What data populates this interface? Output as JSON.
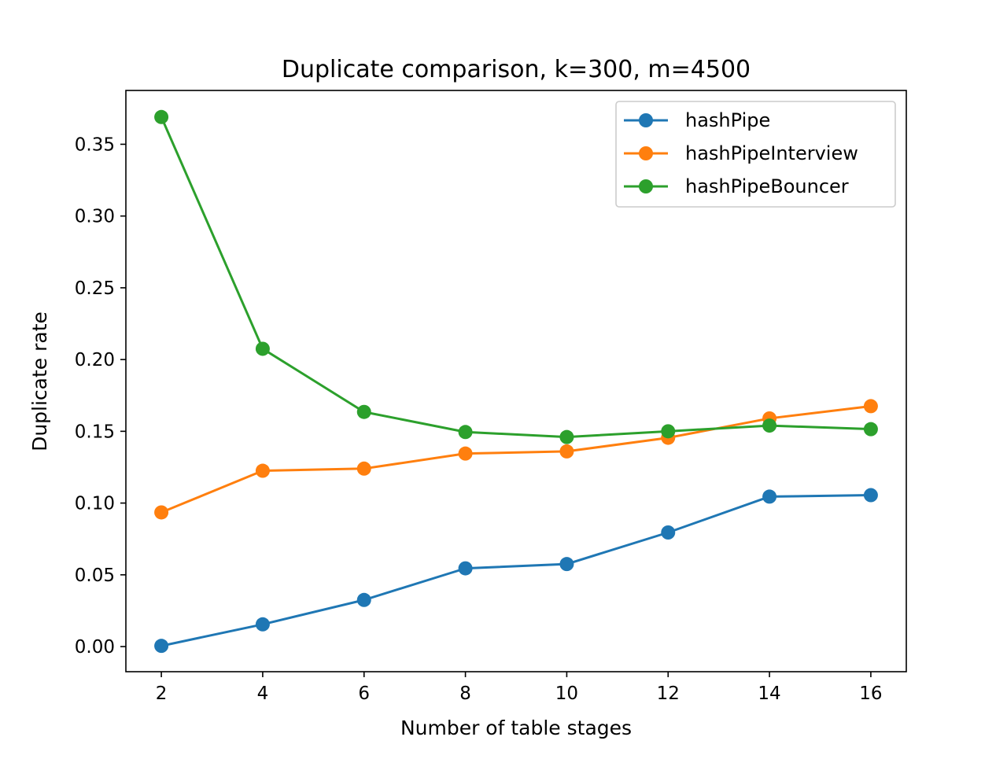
{
  "chart_data": {
    "type": "line",
    "title": "Duplicate comparison, k=300, m=4500",
    "xlabel": "Number of table stages",
    "ylabel": "Duplicate rate",
    "x": [
      2,
      4,
      6,
      8,
      10,
      12,
      14,
      16
    ],
    "xticks": [
      "2",
      "4",
      "6",
      "8",
      "10",
      "12",
      "14",
      "16"
    ],
    "yticks": [
      "0.00",
      "0.05",
      "0.10",
      "0.15",
      "0.20",
      "0.25",
      "0.30",
      "0.35"
    ],
    "xlim": [
      1.3,
      16.7
    ],
    "ylim": [
      -0.0175,
      0.3875
    ],
    "grid": false,
    "legend_position": "top-right",
    "series": [
      {
        "name": "hashPipe",
        "color": "#1f77b4",
        "values": [
          0.0005,
          0.0155,
          0.0325,
          0.0545,
          0.0575,
          0.0795,
          0.1045,
          0.1055
        ]
      },
      {
        "name": "hashPipeInterview",
        "color": "#ff7f0e",
        "values": [
          0.0935,
          0.1225,
          0.124,
          0.1345,
          0.136,
          0.1455,
          0.159,
          0.1675
        ]
      },
      {
        "name": "hashPipeBouncer",
        "color": "#2ca02c",
        "values": [
          0.369,
          0.2075,
          0.1635,
          0.1495,
          0.146,
          0.15,
          0.154,
          0.1515
        ]
      }
    ]
  }
}
